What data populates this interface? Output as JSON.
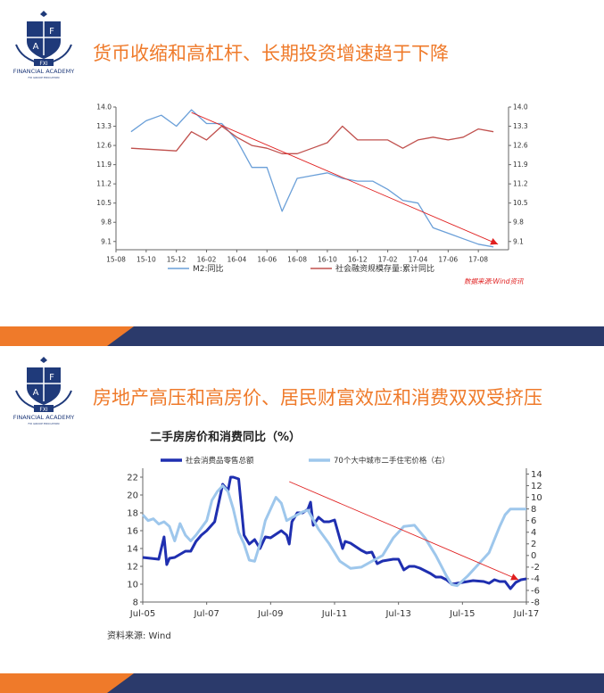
{
  "slides": [
    {
      "title": "货币收缩和高杠杆、长期投资增速趋于下降",
      "logo": {
        "letters": [
          "F",
          "A",
          "FXI"
        ],
        "name": "FINANCIAL ACADEMY",
        "motto": "FXI GROUP EDUCATION"
      },
      "source_note": "数据来源:Wind资讯"
    },
    {
      "title": "房地产高压和高房价、居民财富效应和消费双双受挤压",
      "logo": {
        "letters": [
          "F",
          "A",
          "FXI"
        ],
        "name": "FINANCIAL ACADEMY",
        "motto": "FXI GROUP EDUCATION"
      },
      "source_note": "资料来源: Wind"
    }
  ],
  "colors": {
    "title_orange": "#ef7a2a",
    "footer_navy": "#2b3a6b",
    "footer_orange": "#ef7a2a",
    "trend_red": "#e02020"
  },
  "chart_data": [
    {
      "type": "line",
      "title": "",
      "x_ticks": [
        "15-08",
        "15-10",
        "15-12",
        "16-02",
        "16-04",
        "16-06",
        "16-08",
        "16-10",
        "16-12",
        "17-02",
        "17-04",
        "17-06",
        "17-08"
      ],
      "y_left": {
        "ticks": [
          "14.0",
          "13.3",
          "12.6",
          "11.9",
          "11.2",
          "10.5",
          "9.8",
          "9.1"
        ],
        "range": [
          8.8,
          14.0
        ]
      },
      "y_right": {
        "ticks": [
          "14.0",
          "13.3",
          "12.6",
          "11.9",
          "11.2",
          "10.5",
          "9.8",
          "9.1"
        ],
        "range": [
          8.8,
          14.0
        ]
      },
      "series": [
        {
          "name": "M2:同比",
          "axis": "left",
          "color": "#6a9fd8",
          "x": [
            1,
            2,
            3,
            4,
            5,
            6,
            7,
            8,
            9,
            10,
            11,
            12,
            13,
            14,
            15,
            16,
            17,
            18,
            19,
            20,
            21,
            22,
            23,
            24,
            25
          ],
          "y": [
            13.1,
            13.5,
            13.7,
            13.3,
            13.9,
            13.4,
            13.4,
            12.8,
            11.8,
            11.8,
            10.2,
            11.4,
            11.5,
            11.6,
            11.4,
            11.3,
            11.3,
            11.0,
            10.6,
            10.5,
            9.6,
            9.4,
            9.2,
            9.0,
            8.9
          ]
        },
        {
          "name": "社会融资规模存量:累计同比",
          "axis": "right",
          "color": "#c0504d",
          "x": [
            1,
            4,
            5,
            6,
            7,
            8,
            9,
            10,
            11,
            12,
            13,
            14,
            15,
            16,
            17,
            18,
            19,
            20,
            21,
            22,
            23,
            24,
            25
          ],
          "y": [
            12.5,
            12.4,
            13.1,
            12.8,
            13.3,
            12.9,
            12.6,
            12.5,
            12.3,
            12.3,
            12.5,
            12.7,
            13.3,
            12.8,
            12.8,
            12.8,
            12.5,
            12.8,
            12.9,
            12.8,
            12.9,
            13.2,
            13.1
          ]
        }
      ],
      "x_range": [
        0,
        26
      ],
      "trend_arrow": {
        "from": {
          "x": 5,
          "y": 13.8
        },
        "to": {
          "x": 25.3,
          "y": 9.0
        }
      },
      "grid": false,
      "legend": "bottom"
    },
    {
      "type": "line",
      "title": "二手房房价和消费同比（%）",
      "x_ticks": [
        "Jul-05",
        "Jul-07",
        "Jul-09",
        "Jul-11",
        "Jul-13",
        "Jul-15",
        "Jul-17"
      ],
      "y_left": {
        "ticks": [
          "22",
          "20",
          "18",
          "16",
          "14",
          "12",
          "10",
          "8"
        ],
        "range": [
          8,
          23
        ]
      },
      "y_right": {
        "ticks": [
          "14",
          "12",
          "10",
          "8",
          "6",
          "4",
          "2",
          "0",
          "-2",
          "-4",
          "-6",
          "-8"
        ],
        "range": [
          -8,
          15
        ]
      },
      "x_range": [
        0,
        144
      ],
      "series": [
        {
          "name": "社会消费品零售总额",
          "axis": "left",
          "color": "#1f2fb0",
          "x": [
            0,
            6,
            8,
            9,
            10,
            12,
            16,
            18,
            20,
            22,
            24,
            27,
            30,
            32,
            33,
            34,
            36,
            38,
            40,
            42,
            44,
            46,
            48,
            52,
            54,
            55,
            56,
            58,
            60,
            62,
            63,
            64,
            66,
            68,
            70,
            72,
            75,
            76,
            78,
            82,
            84,
            86,
            88,
            90,
            94,
            96,
            98,
            100,
            102,
            104,
            108,
            110,
            112,
            114,
            116,
            118,
            120,
            124,
            128,
            130,
            132,
            134,
            136,
            138,
            140,
            142,
            144
          ],
          "y": [
            13.0,
            12.8,
            15.3,
            12.2,
            12.9,
            13.0,
            13.7,
            13.7,
            14.8,
            15.5,
            16.0,
            17.0,
            21.2,
            20.5,
            22.0,
            22.0,
            21.8,
            15.5,
            14.5,
            15.0,
            14.0,
            15.3,
            15.2,
            16.0,
            15.5,
            14.5,
            17.0,
            18.0,
            18.0,
            18.4,
            19.2,
            16.6,
            17.5,
            17.0,
            17.0,
            17.2,
            14.0,
            14.8,
            14.6,
            13.8,
            13.5,
            13.6,
            12.3,
            12.6,
            12.8,
            12.8,
            11.6,
            12.0,
            12.0,
            11.8,
            11.2,
            10.8,
            10.8,
            10.5,
            10.0,
            10.1,
            10.2,
            10.4,
            10.3,
            10.1,
            10.5,
            10.3,
            10.3,
            9.5,
            10.2,
            10.5,
            10.6
          ]
        },
        {
          "name": "70个大中城市二手住宅价格（右）",
          "axis": "right",
          "color": "#9ec7ec",
          "x": [
            0,
            2,
            4,
            6,
            8,
            10,
            12,
            14,
            16,
            18,
            20,
            24,
            26,
            28,
            30,
            32,
            34,
            36,
            38,
            40,
            42,
            44,
            46,
            48,
            50,
            52,
            54,
            56,
            58,
            60,
            62,
            66,
            70,
            74,
            78,
            82,
            86,
            90,
            94,
            98,
            102,
            106,
            110,
            114,
            116,
            118,
            122,
            126,
            130,
            134,
            136,
            138,
            140,
            142,
            144
          ],
          "y": [
            7.0,
            6.0,
            6.3,
            5.4,
            5.8,
            5.0,
            2.5,
            5.5,
            3.5,
            2.5,
            3.5,
            6.0,
            9.5,
            11.0,
            12.0,
            11.0,
            8.0,
            4.0,
            2.0,
            -0.8,
            -1.0,
            2.0,
            6.0,
            8.0,
            10.0,
            9.0,
            6.0,
            6.5,
            7.0,
            7.5,
            7.8,
            4.5,
            2.0,
            -1.0,
            -2.2,
            -2.0,
            -1.0,
            0.0,
            3.0,
            5.0,
            5.2,
            3.0,
            0.0,
            -3.5,
            -5.0,
            -5.2,
            -3.5,
            -1.5,
            0.5,
            5.0,
            7.0,
            8.0,
            8.0,
            8.0,
            8.0
          ]
        }
      ],
      "trend_arrow": {
        "from": {
          "x": 55,
          "y": 21.5
        },
        "to": {
          "x": 141,
          "y": 10.5
        }
      },
      "grid": false,
      "legend": "top"
    }
  ]
}
